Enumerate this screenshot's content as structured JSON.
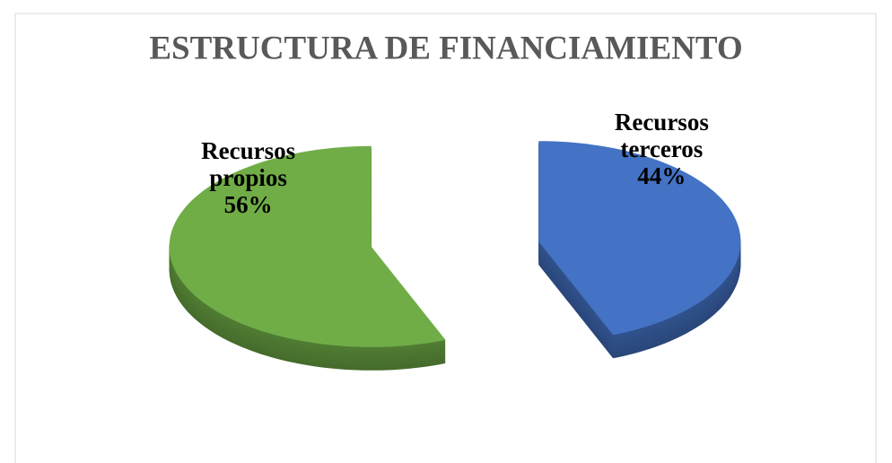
{
  "chart_data": {
    "type": "pie",
    "title": "ESTRUCTURA DE FINANCIAMIENTO",
    "categories": [
      "Recursos terceros",
      "Recursos propios"
    ],
    "values": [
      44,
      56
    ],
    "value_labels": [
      "44%",
      "56%"
    ],
    "colors": [
      "#4472c4",
      "#70ad47"
    ]
  }
}
